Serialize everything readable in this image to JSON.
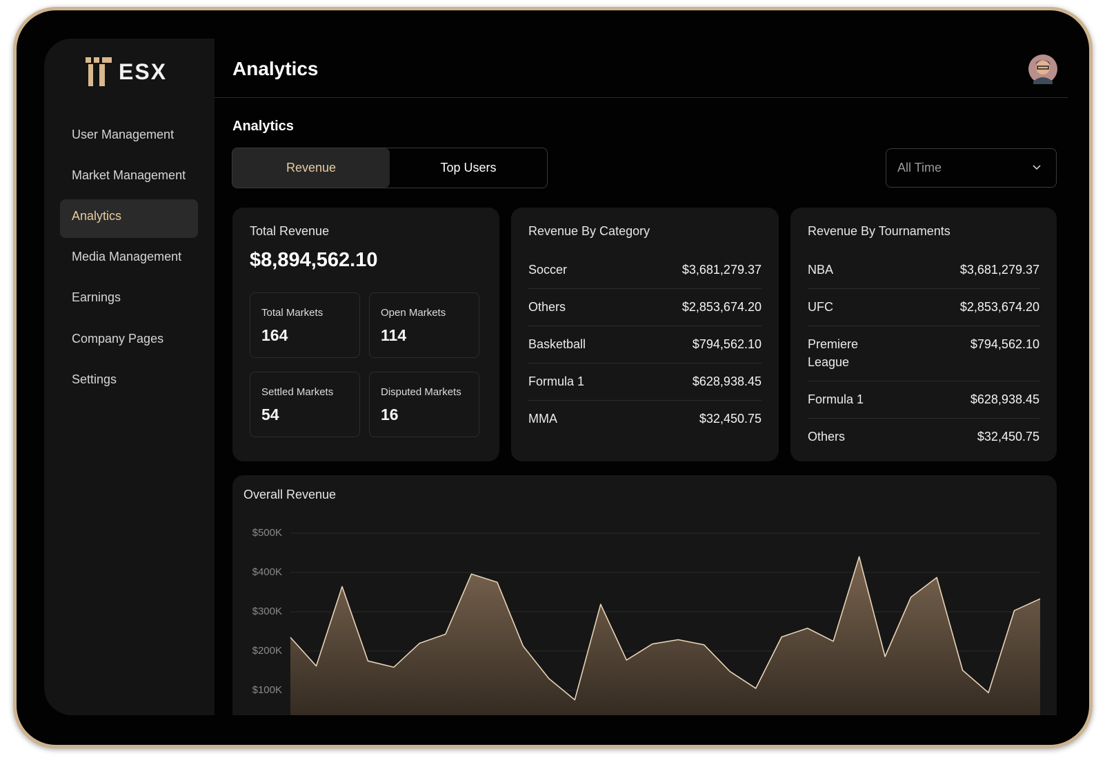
{
  "sidebar": {
    "logo": "ESX",
    "nav": [
      "User Management",
      "Market Management",
      "Analytics",
      "Media Management",
      "Earnings",
      "Company Pages",
      "Settings"
    ]
  },
  "header": {
    "title": "Analytics"
  },
  "section_title": "Analytics",
  "tabs": [
    "Revenue",
    "Top Users"
  ],
  "filter": "All Time",
  "total_revenue": {
    "title": "Total Revenue",
    "value": "$8,894,562.10",
    "stats": [
      {
        "label": "Total Markets",
        "value": 164
      },
      {
        "label": "Open Markets",
        "value": 114
      },
      {
        "label": "Settled Markets",
        "value": 54
      },
      {
        "label": "Disputed Markets",
        "value": 16
      }
    ]
  },
  "revenue_by_category": {
    "title": "Revenue By Category",
    "rows": [
      [
        "Soccer",
        "$3,681,279.37"
      ],
      [
        "Others",
        "$2,853,674.20"
      ],
      [
        "Basketball",
        "$794,562.10"
      ],
      [
        "Formula 1",
        "$628,938.45"
      ],
      [
        "MMA",
        "$32,450.75"
      ]
    ]
  },
  "revenue_by_tournaments": {
    "title": "Revenue By Tournaments",
    "rows": [
      [
        "NBA",
        "$3,681,279.37"
      ],
      [
        "UFC",
        "$2,853,674.20"
      ],
      [
        "Premiere League",
        "$794,562.10"
      ],
      [
        "Formula 1",
        "$628,938.45"
      ],
      [
        "Others",
        "$32,450.75"
      ]
    ]
  },
  "chart_data": {
    "type": "area",
    "title": "Overall Revenue",
    "color": "#e8d3b5",
    "values": [
      235000,
      162000,
      364000,
      175000,
      159000,
      220000,
      243000,
      396000,
      375000,
      213000,
      130000,
      76000,
      319000,
      177000,
      218000,
      229000,
      216000,
      148000,
      105000,
      236000,
      258000,
      225000,
      440000,
      186000,
      337000,
      387000,
      151000,
      94000,
      303000,
      333000
    ],
    "ylim": [
      0,
      500000
    ],
    "yticks": [
      {
        "value": 100000,
        "label": "$100K"
      },
      {
        "value": 200000,
        "label": "$200K"
      },
      {
        "value": 300000,
        "label": "$300K"
      },
      {
        "value": 400000,
        "label": "$400K"
      },
      {
        "value": 500000,
        "label": "$500K"
      }
    ],
    "grid": true
  }
}
